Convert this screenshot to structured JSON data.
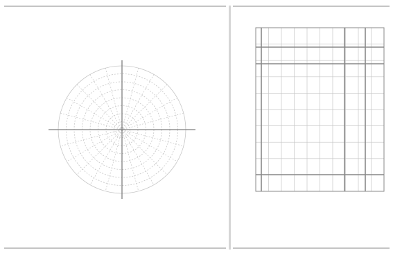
{
  "palette": {
    "rule": "#c4c4c4",
    "grid_fine": "#c6c6c6",
    "grid_major": "#888888",
    "axis": "#7e7e7e",
    "plot_red": "#e06060",
    "plot_green": "#3fae4a"
  },
  "chart_data": [
    {
      "type": "polar",
      "title": "",
      "caption": "",
      "angle_tick_labels": [],
      "legend_lines": [],
      "series": []
    },
    {
      "type": "line",
      "title": "",
      "xlabel": "",
      "ylabel": "",
      "x_tick_labels": [],
      "y_tick_labels": [],
      "series": []
    }
  ]
}
